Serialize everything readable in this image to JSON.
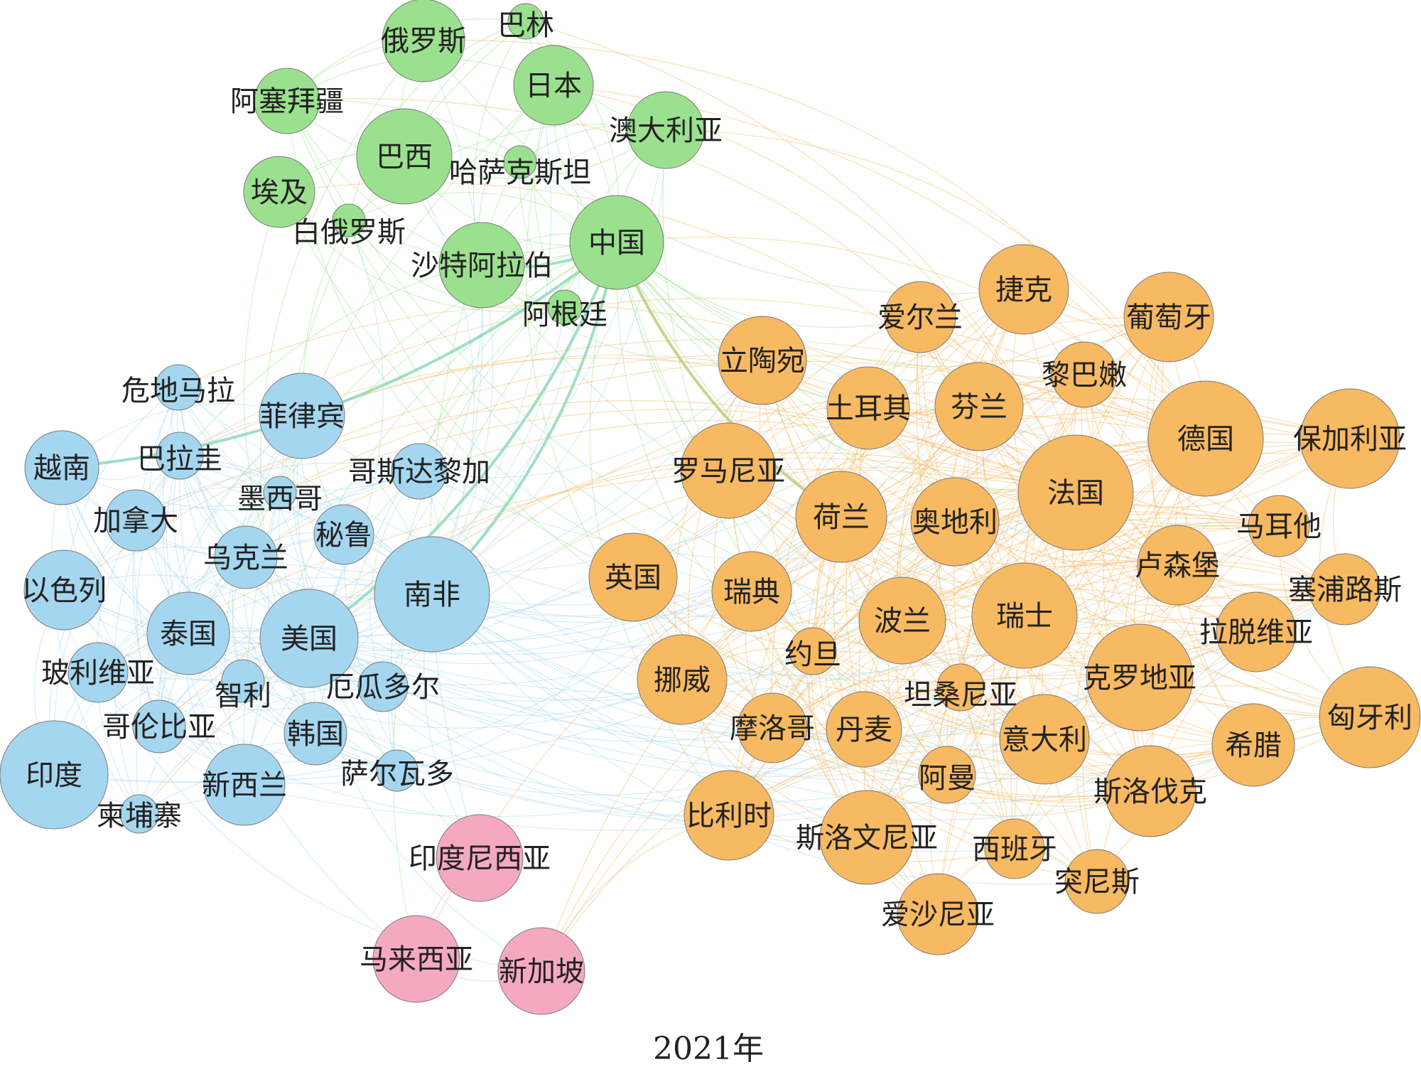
{
  "caption": "2021年",
  "colors": {
    "green": "#9be08f",
    "blue": "#a5d6f0",
    "orange": "#f7b962",
    "pink": "#f5a9c1",
    "node_stroke": "#7a7a7a"
  },
  "communities": [
    "green",
    "blue",
    "orange",
    "pink"
  ],
  "nodes": [
    {
      "id": "russia",
      "label": "俄罗斯",
      "community": "green",
      "size": "medium"
    },
    {
      "id": "bahrain",
      "label": "巴林",
      "community": "green",
      "size": "tiny"
    },
    {
      "id": "japan",
      "label": "日本",
      "community": "green",
      "size": "large"
    },
    {
      "id": "azerbaijan",
      "label": "阿塞拜疆",
      "community": "green",
      "size": "medium"
    },
    {
      "id": "brazil",
      "label": "巴西",
      "community": "green",
      "size": "large"
    },
    {
      "id": "australia",
      "label": "澳大利亚",
      "community": "green",
      "size": "large"
    },
    {
      "id": "kazakhstan",
      "label": "哈萨克斯坦",
      "community": "green",
      "size": "tiny"
    },
    {
      "id": "egypt",
      "label": "埃及",
      "community": "green",
      "size": "medium"
    },
    {
      "id": "belarus",
      "label": "白俄罗斯",
      "community": "green",
      "size": "tiny"
    },
    {
      "id": "china",
      "label": "中国",
      "community": "green",
      "size": "large"
    },
    {
      "id": "saudi",
      "label": "沙特阿拉伯",
      "community": "green",
      "size": "large"
    },
    {
      "id": "argentina",
      "label": "阿根廷",
      "community": "green",
      "size": "tiny"
    },
    {
      "id": "guatemala",
      "label": "危地马拉",
      "community": "blue",
      "size": "small"
    },
    {
      "id": "philippines",
      "label": "菲律宾",
      "community": "blue",
      "size": "large"
    },
    {
      "id": "vietnam",
      "label": "越南",
      "community": "blue",
      "size": "medium"
    },
    {
      "id": "paraguay",
      "label": "巴拉圭",
      "community": "blue",
      "size": "small"
    },
    {
      "id": "costarica",
      "label": "哥斯达黎加",
      "community": "blue",
      "size": "small"
    },
    {
      "id": "mexico",
      "label": "墨西哥",
      "community": "blue",
      "size": "small"
    },
    {
      "id": "canada",
      "label": "加拿大",
      "community": "blue",
      "size": "medium"
    },
    {
      "id": "peru",
      "label": "秘鲁",
      "community": "blue",
      "size": "medium"
    },
    {
      "id": "ukraine",
      "label": "乌克兰",
      "community": "blue",
      "size": "medium"
    },
    {
      "id": "israel",
      "label": "以色列",
      "community": "blue",
      "size": "medium"
    },
    {
      "id": "southafrica",
      "label": "南非",
      "community": "blue",
      "size": "xlarge"
    },
    {
      "id": "thailand",
      "label": "泰国",
      "community": "blue",
      "size": "large"
    },
    {
      "id": "usa",
      "label": "美国",
      "community": "blue",
      "size": "large"
    },
    {
      "id": "bolivia",
      "label": "玻利维亚",
      "community": "blue",
      "size": "medium"
    },
    {
      "id": "chile",
      "label": "智利",
      "community": "blue",
      "size": "small"
    },
    {
      "id": "ecuador",
      "label": "厄瓜多尔",
      "community": "blue",
      "size": "small"
    },
    {
      "id": "colombia",
      "label": "哥伦比亚",
      "community": "blue",
      "size": "small"
    },
    {
      "id": "korea",
      "label": "韩国",
      "community": "blue",
      "size": "medium"
    },
    {
      "id": "india",
      "label": "印度",
      "community": "blue",
      "size": "xlarge"
    },
    {
      "id": "newzealand",
      "label": "新西兰",
      "community": "blue",
      "size": "medium"
    },
    {
      "id": "elsalvador",
      "label": "萨尔瓦多",
      "community": "blue",
      "size": "small"
    },
    {
      "id": "cambodia",
      "label": "柬埔寨",
      "community": "blue",
      "size": "tiny"
    },
    {
      "id": "czech",
      "label": "捷克",
      "community": "orange",
      "size": "large"
    },
    {
      "id": "ireland",
      "label": "爱尔兰",
      "community": "orange",
      "size": "medium"
    },
    {
      "id": "portugal",
      "label": "葡萄牙",
      "community": "orange",
      "size": "large"
    },
    {
      "id": "lithuania",
      "label": "立陶宛",
      "community": "orange",
      "size": "large"
    },
    {
      "id": "lebanon",
      "label": "黎巴嫩",
      "community": "orange",
      "size": "medium"
    },
    {
      "id": "turkey",
      "label": "土耳其",
      "community": "orange",
      "size": "large"
    },
    {
      "id": "finland",
      "label": "芬兰",
      "community": "orange",
      "size": "large"
    },
    {
      "id": "germany",
      "label": "德国",
      "community": "orange",
      "size": "xlarge"
    },
    {
      "id": "bulgaria",
      "label": "保加利亚",
      "community": "orange",
      "size": "large"
    },
    {
      "id": "romania",
      "label": "罗马尼亚",
      "community": "orange",
      "size": "large"
    },
    {
      "id": "france",
      "label": "法国",
      "community": "orange",
      "size": "xlarge"
    },
    {
      "id": "netherlands",
      "label": "荷兰",
      "community": "orange",
      "size": "large"
    },
    {
      "id": "austria",
      "label": "奥地利",
      "community": "orange",
      "size": "large"
    },
    {
      "id": "malta",
      "label": "马耳他",
      "community": "orange",
      "size": "medium"
    },
    {
      "id": "uk",
      "label": "英国",
      "community": "orange",
      "size": "large"
    },
    {
      "id": "luxembourg",
      "label": "卢森堡",
      "community": "orange",
      "size": "large"
    },
    {
      "id": "sweden",
      "label": "瑞典",
      "community": "orange",
      "size": "large"
    },
    {
      "id": "cyprus",
      "label": "塞浦路斯",
      "community": "orange",
      "size": "medium"
    },
    {
      "id": "poland",
      "label": "波兰",
      "community": "orange",
      "size": "large"
    },
    {
      "id": "switzerland",
      "label": "瑞士",
      "community": "orange",
      "size": "xlarge"
    },
    {
      "id": "latvia",
      "label": "拉脱维亚",
      "community": "orange",
      "size": "large"
    },
    {
      "id": "jordan",
      "label": "约旦",
      "community": "orange",
      "size": "small"
    },
    {
      "id": "norway",
      "label": "挪威",
      "community": "orange",
      "size": "large"
    },
    {
      "id": "croatia",
      "label": "克罗地亚",
      "community": "orange",
      "size": "xlarge"
    },
    {
      "id": "tanzania",
      "label": "坦桑尼亚",
      "community": "orange",
      "size": "small"
    },
    {
      "id": "hungary",
      "label": "匈牙利",
      "community": "orange",
      "size": "large"
    },
    {
      "id": "morocco",
      "label": "摩洛哥",
      "community": "orange",
      "size": "medium"
    },
    {
      "id": "denmark",
      "label": "丹麦",
      "community": "orange",
      "size": "large"
    },
    {
      "id": "italy",
      "label": "意大利",
      "community": "orange",
      "size": "large"
    },
    {
      "id": "greece",
      "label": "希腊",
      "community": "orange",
      "size": "large"
    },
    {
      "id": "oman",
      "label": "阿曼",
      "community": "orange",
      "size": "medium"
    },
    {
      "id": "slovakia",
      "label": "斯洛伐克",
      "community": "orange",
      "size": "large"
    },
    {
      "id": "belgium",
      "label": "比利时",
      "community": "orange",
      "size": "large"
    },
    {
      "id": "slovenia",
      "label": "斯洛文尼亚",
      "community": "orange",
      "size": "large"
    },
    {
      "id": "spain",
      "label": "西班牙",
      "community": "orange",
      "size": "medium"
    },
    {
      "id": "tunisia",
      "label": "突尼斯",
      "community": "orange",
      "size": "medium"
    },
    {
      "id": "estonia",
      "label": "爱沙尼亚",
      "community": "orange",
      "size": "large"
    },
    {
      "id": "indonesia",
      "label": "印度尼西亚",
      "community": "pink",
      "size": "large"
    },
    {
      "id": "malaysia",
      "label": "马来西亚",
      "community": "pink",
      "size": "large"
    },
    {
      "id": "singapore",
      "label": "新加坡",
      "community": "pink",
      "size": "large"
    }
  ]
}
